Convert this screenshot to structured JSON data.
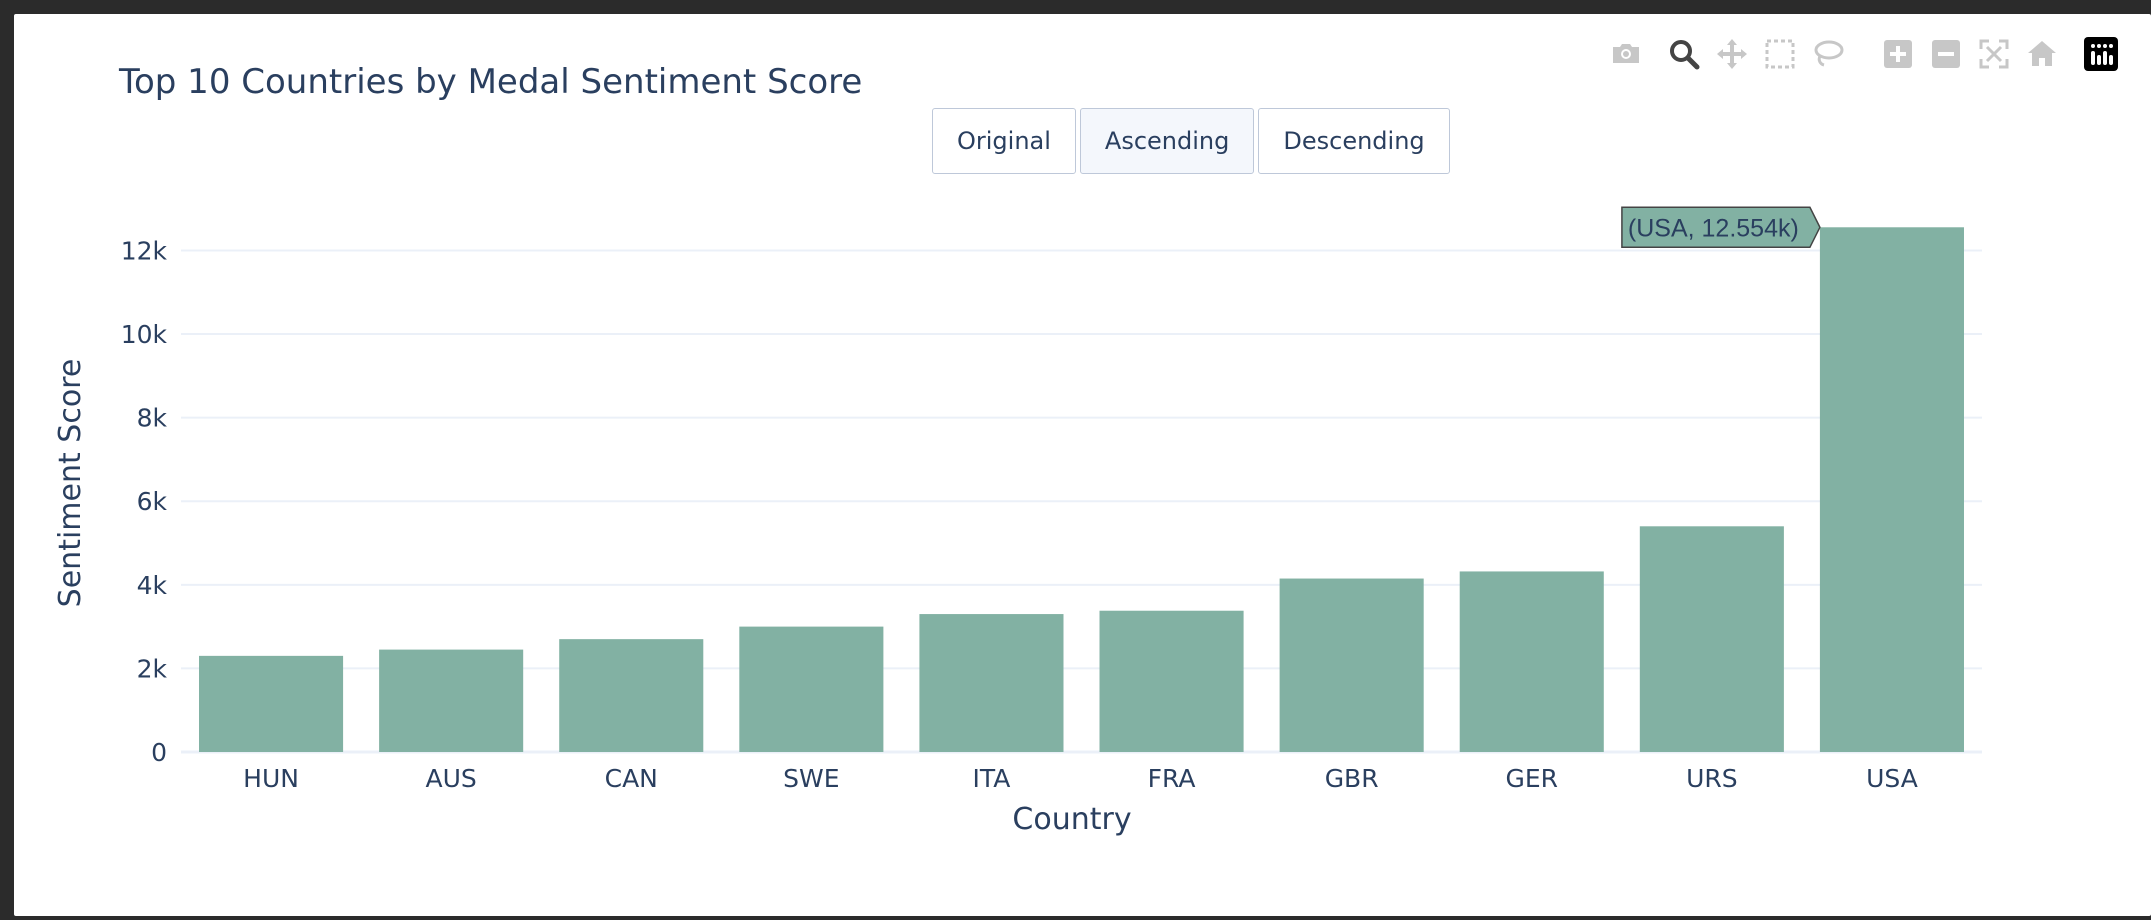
{
  "modebar": {
    "buttons": [
      {
        "name": "camera-icon",
        "active": false
      },
      {
        "name": "zoom-icon",
        "active": true
      },
      {
        "name": "pan-icon",
        "active": false
      },
      {
        "name": "box-select-icon",
        "active": false
      },
      {
        "name": "lasso-select-icon",
        "active": false
      },
      {
        "name": "zoom-in-icon",
        "active": false
      },
      {
        "name": "zoom-out-icon",
        "active": false
      },
      {
        "name": "autoscale-icon",
        "active": false
      },
      {
        "name": "reset-axes-icon",
        "active": false
      },
      {
        "name": "plotly-logo-icon",
        "active": false
      }
    ],
    "inactive_color": "#c7c7c7",
    "active_color": "#444444"
  },
  "sort_buttons": [
    {
      "label": "Original",
      "active": false
    },
    {
      "label": "Ascending",
      "active": true
    },
    {
      "label": "Descending",
      "active": false
    }
  ],
  "chart_data": {
    "type": "bar",
    "title": "Top 10 Countries by Medal Sentiment Score",
    "xlabel": "Country",
    "ylabel": "Sentiment Score",
    "categories": [
      "HUN",
      "AUS",
      "CAN",
      "SWE",
      "ITA",
      "FRA",
      "GBR",
      "GER",
      "URS",
      "USA"
    ],
    "values": [
      2300,
      2450,
      2700,
      3000,
      3300,
      3380,
      4150,
      4320,
      5400,
      12554
    ],
    "ylim": [
      0,
      12800
    ],
    "yticks": [
      0,
      2000,
      4000,
      6000,
      8000,
      10000,
      12000
    ],
    "ytick_labels": [
      "0",
      "2k",
      "4k",
      "6k",
      "8k",
      "10k",
      "12k"
    ],
    "grid": true,
    "bar_color": "#82b1a3",
    "hover": {
      "category": "USA",
      "text": "(USA, 12.554k)"
    }
  }
}
